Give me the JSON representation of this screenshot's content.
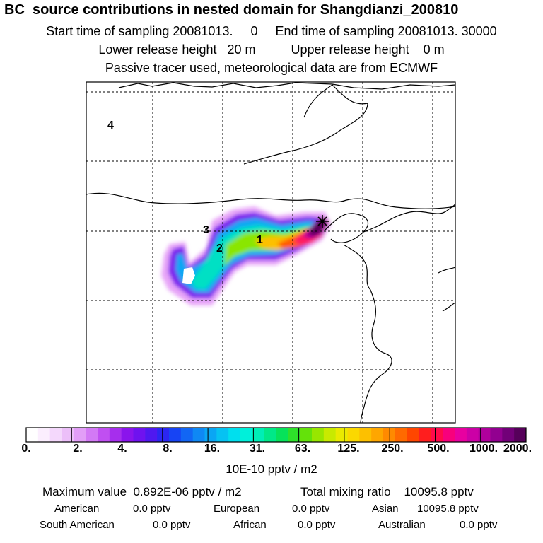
{
  "header": {
    "title": "BC  source contributions in nested domain for Shangdianzi_200810",
    "line1": "Start time of sampling 20081013.     0     End time of sampling 20081013. 30000",
    "line2": "Lower release height   20 m          Upper release height    0 m",
    "line3": "Passive tracer used, meteorological data are from ECMWF"
  },
  "map": {
    "region_labels": [
      "4",
      "3",
      "2",
      "1"
    ],
    "receptor_marker": "star"
  },
  "colorbar": {
    "ticks": [
      "0.",
      "2.",
      "4.",
      "8.",
      "16.",
      "31.",
      "63.",
      "125.",
      "250.",
      "500.",
      "1000.",
      "2000."
    ],
    "colors": [
      "#ffffff",
      "#fbeefe",
      "#f4d8fc",
      "#ecbff9",
      "#e29ef7",
      "#d379f5",
      "#c04ff1",
      "#a62eed",
      "#8a14ec",
      "#6f12ef",
      "#4f18f0",
      "#2b26f2",
      "#1744f4",
      "#1266f4",
      "#0f88f4",
      "#0aa6f4",
      "#06c2f2",
      "#00dfee",
      "#00f0da",
      "#00eeb6",
      "#00e888",
      "#06e25a",
      "#2ee02a",
      "#64e20a",
      "#98e600",
      "#c8ea00",
      "#eaea00",
      "#fbd800",
      "#fdc000",
      "#fea600",
      "#ff8a00",
      "#ff6a00",
      "#ff4600",
      "#ff1e1e",
      "#ff0a4a",
      "#f8007c",
      "#e800a0",
      "#cc00a6",
      "#b0009c",
      "#920090",
      "#720078",
      "#56005a"
    ],
    "unit": "10E-10 pptv / m2"
  },
  "summary": {
    "max_value": "Maximum value  0.892E-06 pptv / m2",
    "total": "Total mixing ratio    10095.8 pptv",
    "regions": [
      {
        "name": "American",
        "value": "0.0 pptv"
      },
      {
        "name": "European",
        "value": "0.0 pptv"
      },
      {
        "name": "Asian",
        "value": "10095.8 pptv"
      },
      {
        "name": "South American",
        "value": "0.0 pptv"
      },
      {
        "name": "African",
        "value": "0.0 pptv"
      },
      {
        "name": "Australian",
        "value": "0.0 pptv"
      }
    ]
  }
}
